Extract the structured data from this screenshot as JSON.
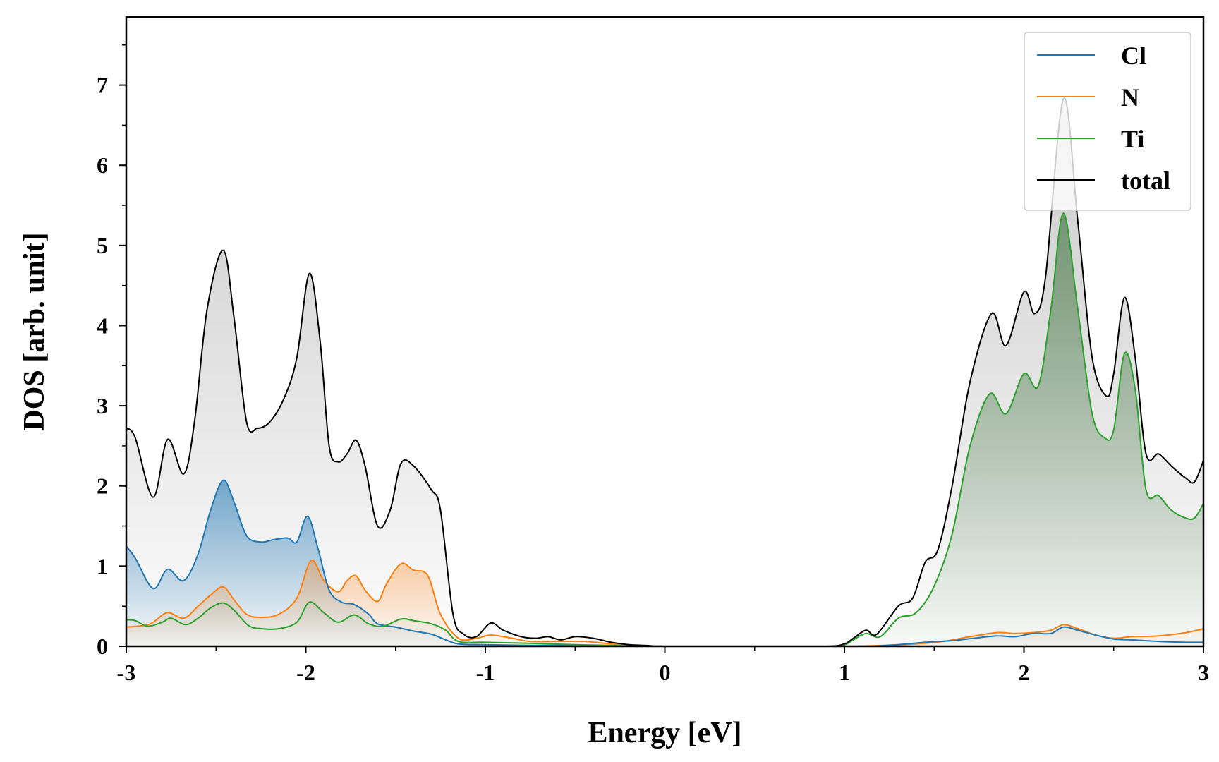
{
  "chart_data": {
    "type": "area",
    "title": "",
    "xlabel": "Energy [eV]",
    "ylabel": "DOS [arb. unit]",
    "xlim": [
      -3,
      3
    ],
    "ylim": [
      0,
      7.85
    ],
    "grid": false,
    "legend_position": "top-right",
    "x_ticks": [
      -3,
      -2,
      -1,
      0,
      1,
      2,
      3
    ],
    "x_tick_labels": [
      "-3",
      "-2",
      "-1",
      "0",
      "1",
      "2",
      "3"
    ],
    "y_ticks": [
      0,
      1,
      2,
      3,
      4,
      5,
      6,
      7
    ],
    "y_tick_labels": [
      "0",
      "1",
      "2",
      "3",
      "4",
      "5",
      "6",
      "7"
    ],
    "series": [
      {
        "name": "Cl",
        "color": "#1f77b4",
        "x": [
          -3.0,
          -2.95,
          -2.85,
          -2.77,
          -2.68,
          -2.6,
          -2.53,
          -2.46,
          -2.4,
          -2.33,
          -2.25,
          -2.18,
          -2.1,
          -2.05,
          -1.99,
          -1.93,
          -1.87,
          -1.8,
          -1.73,
          -1.65,
          -1.6,
          -1.5,
          -1.4,
          -1.3,
          -1.22,
          -1.15,
          -1.0,
          -0.7,
          -0.4,
          -0.2,
          0.0,
          0.5,
          1.0,
          1.15,
          1.3,
          1.45,
          1.6,
          1.72,
          1.85,
          1.95,
          2.05,
          2.15,
          2.22,
          2.3,
          2.4,
          2.5,
          2.6,
          2.75,
          2.9,
          3.0
        ],
        "values": [
          1.25,
          1.1,
          0.72,
          0.96,
          0.82,
          1.15,
          1.7,
          2.07,
          1.8,
          1.38,
          1.3,
          1.33,
          1.35,
          1.3,
          1.62,
          1.2,
          0.7,
          0.55,
          0.52,
          0.4,
          0.28,
          0.24,
          0.19,
          0.15,
          0.08,
          0.03,
          0.02,
          0.01,
          0.01,
          0.0,
          0.0,
          0.0,
          0.0,
          0.0,
          0.02,
          0.05,
          0.07,
          0.1,
          0.13,
          0.12,
          0.16,
          0.16,
          0.24,
          0.2,
          0.14,
          0.09,
          0.08,
          0.06,
          0.05,
          0.05
        ]
      },
      {
        "name": "N",
        "color": "#ff7f0e",
        "x": [
          -3.0,
          -2.9,
          -2.85,
          -2.77,
          -2.68,
          -2.6,
          -2.53,
          -2.46,
          -2.4,
          -2.33,
          -2.25,
          -2.15,
          -2.05,
          -1.97,
          -1.9,
          -1.82,
          -1.77,
          -1.72,
          -1.67,
          -1.6,
          -1.55,
          -1.47,
          -1.4,
          -1.32,
          -1.25,
          -1.15,
          -1.05,
          -0.97,
          -0.85,
          -0.75,
          -0.6,
          -0.45,
          -0.3,
          -0.15,
          0.0,
          0.5,
          1.0,
          1.2,
          1.4,
          1.55,
          1.7,
          1.85,
          1.95,
          2.05,
          2.15,
          2.22,
          2.3,
          2.4,
          2.5,
          2.6,
          2.75,
          2.9,
          3.0
        ],
        "values": [
          0.24,
          0.26,
          0.3,
          0.42,
          0.35,
          0.5,
          0.64,
          0.74,
          0.58,
          0.4,
          0.36,
          0.4,
          0.6,
          1.07,
          0.82,
          0.68,
          0.82,
          0.88,
          0.7,
          0.56,
          0.78,
          1.03,
          0.95,
          0.88,
          0.4,
          0.1,
          0.1,
          0.14,
          0.1,
          0.06,
          0.06,
          0.06,
          0.03,
          0.01,
          0.0,
          0.0,
          0.0,
          0.01,
          0.03,
          0.06,
          0.12,
          0.17,
          0.16,
          0.17,
          0.2,
          0.27,
          0.22,
          0.14,
          0.1,
          0.12,
          0.13,
          0.17,
          0.22
        ]
      },
      {
        "name": "Ti",
        "color": "#2ca02c",
        "x": [
          -3.0,
          -2.95,
          -2.88,
          -2.8,
          -2.75,
          -2.67,
          -2.6,
          -2.53,
          -2.46,
          -2.4,
          -2.32,
          -2.25,
          -2.15,
          -2.05,
          -1.98,
          -1.9,
          -1.82,
          -1.73,
          -1.65,
          -1.57,
          -1.47,
          -1.4,
          -1.3,
          -1.22,
          -1.15,
          -1.0,
          -0.8,
          -0.5,
          -0.3,
          -0.1,
          0.0,
          0.5,
          0.9,
          1.0,
          1.05,
          1.12,
          1.2,
          1.3,
          1.4,
          1.5,
          1.6,
          1.7,
          1.81,
          1.9,
          2.0,
          2.08,
          2.15,
          2.22,
          2.3,
          2.38,
          2.45,
          2.5,
          2.56,
          2.62,
          2.68,
          2.75,
          2.82,
          2.9,
          2.95,
          3.0
        ],
        "values": [
          0.33,
          0.32,
          0.25,
          0.3,
          0.35,
          0.27,
          0.35,
          0.48,
          0.54,
          0.45,
          0.26,
          0.22,
          0.22,
          0.3,
          0.55,
          0.42,
          0.3,
          0.39,
          0.28,
          0.25,
          0.34,
          0.32,
          0.28,
          0.2,
          0.06,
          0.05,
          0.04,
          0.02,
          0.01,
          0.0,
          0.0,
          0.0,
          0.0,
          0.02,
          0.08,
          0.16,
          0.12,
          0.35,
          0.42,
          0.75,
          1.4,
          2.5,
          3.15,
          2.9,
          3.4,
          3.25,
          4.2,
          5.4,
          4.2,
          2.9,
          2.6,
          2.7,
          3.65,
          3.2,
          1.95,
          1.88,
          1.7,
          1.6,
          1.6,
          1.78
        ]
      },
      {
        "name": "total",
        "color": "#000000",
        "x": [
          -3.0,
          -2.95,
          -2.85,
          -2.77,
          -2.68,
          -2.62,
          -2.55,
          -2.46,
          -2.4,
          -2.33,
          -2.27,
          -2.2,
          -2.12,
          -2.05,
          -1.98,
          -1.92,
          -1.87,
          -1.82,
          -1.77,
          -1.72,
          -1.67,
          -1.6,
          -1.53,
          -1.47,
          -1.4,
          -1.3,
          -1.25,
          -1.18,
          -1.12,
          -1.05,
          -0.97,
          -0.9,
          -0.8,
          -0.72,
          -0.65,
          -0.58,
          -0.5,
          -0.4,
          -0.3,
          -0.2,
          -0.1,
          0.0,
          0.5,
          0.9,
          1.0,
          1.05,
          1.12,
          1.18,
          1.3,
          1.38,
          1.45,
          1.52,
          1.6,
          1.7,
          1.82,
          1.9,
          2.0,
          2.06,
          2.12,
          2.22,
          2.3,
          2.38,
          2.46,
          2.5,
          2.56,
          2.62,
          2.68,
          2.75,
          2.82,
          2.9,
          2.95,
          3.0
        ],
        "values": [
          2.72,
          2.6,
          1.86,
          2.58,
          2.15,
          2.8,
          4.2,
          4.94,
          4.1,
          2.8,
          2.72,
          2.8,
          3.1,
          3.6,
          4.65,
          3.8,
          2.5,
          2.3,
          2.4,
          2.57,
          2.25,
          1.5,
          1.7,
          2.28,
          2.25,
          1.95,
          1.7,
          0.4,
          0.15,
          0.12,
          0.29,
          0.2,
          0.12,
          0.1,
          0.12,
          0.08,
          0.12,
          0.1,
          0.05,
          0.02,
          0.01,
          0.0,
          0.0,
          0.0,
          0.03,
          0.1,
          0.2,
          0.15,
          0.5,
          0.6,
          1.05,
          1.2,
          2.0,
          3.3,
          4.15,
          3.75,
          4.42,
          4.15,
          4.6,
          6.83,
          5.3,
          3.6,
          3.12,
          3.4,
          4.35,
          3.6,
          2.4,
          2.4,
          2.25,
          2.1,
          2.05,
          2.32
        ]
      }
    ]
  }
}
